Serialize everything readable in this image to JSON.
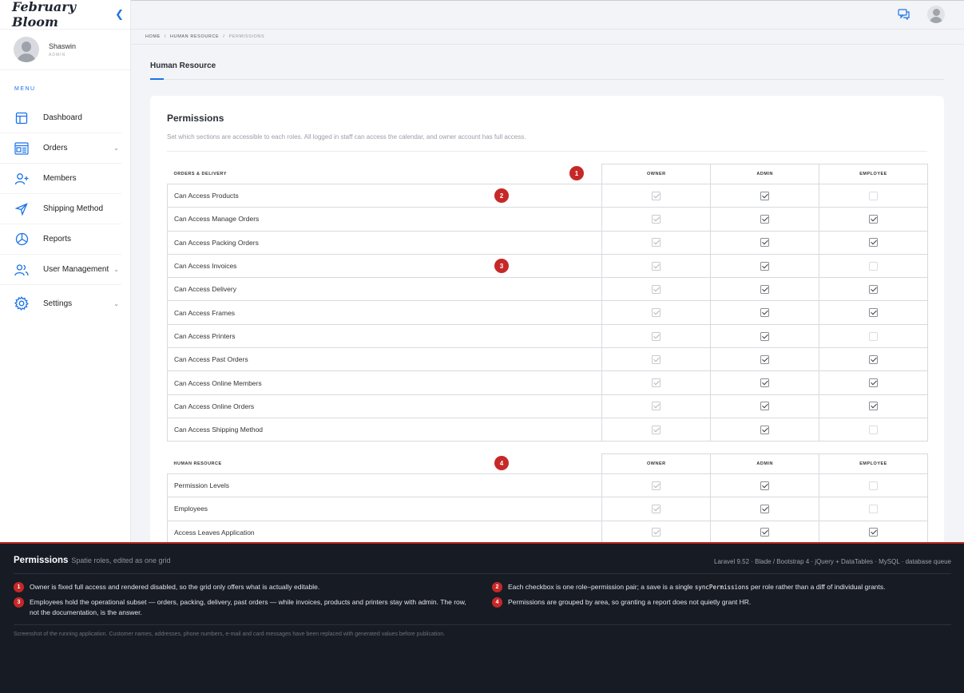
{
  "app": {
    "brand": "February Bloom"
  },
  "user": {
    "name": "Shaswin",
    "role": "ADMIN"
  },
  "sidebar": {
    "menu_label": "MENU",
    "items": [
      {
        "label": "Dashboard",
        "icon": "layout-icon",
        "chevron": false
      },
      {
        "label": "Orders",
        "icon": "orders-icon",
        "chevron": true
      },
      {
        "label": "Members",
        "icon": "user-plus-icon",
        "chevron": false
      },
      {
        "label": "Shipping Method",
        "icon": "send-icon",
        "chevron": false
      },
      {
        "label": "Reports",
        "icon": "pie-chart-icon",
        "chevron": false
      },
      {
        "label": "User Management",
        "icon": "users-icon",
        "chevron": true
      },
      {
        "label": "Settings",
        "icon": "gear-icon",
        "chevron": true
      }
    ]
  },
  "breadcrumb": {
    "home": "HOME",
    "section": "HUMAN RESOURCE",
    "current": "PERMISSIONS"
  },
  "page": {
    "title": "Human Resource"
  },
  "card": {
    "title": "Permissions",
    "subtitle": "Set which sections are accessible to each roles. All logged in staff can access the calendar, and owner account has full access."
  },
  "roles": [
    "OWNER",
    "ADMIN",
    "EMPLOYEE"
  ],
  "groups": [
    {
      "name": "ORDERS & DELIVERY",
      "rows": [
        {
          "label": "Can Access Products",
          "owner": true,
          "admin": true,
          "employee": false
        },
        {
          "label": "Can Access Manage Orders",
          "owner": true,
          "admin": true,
          "employee": true
        },
        {
          "label": "Can Access Packing Orders",
          "owner": true,
          "admin": true,
          "employee": true
        },
        {
          "label": "Can Access Invoices",
          "owner": true,
          "admin": true,
          "employee": false
        },
        {
          "label": "Can Access Delivery",
          "owner": true,
          "admin": true,
          "employee": true
        },
        {
          "label": "Can Access Frames",
          "owner": true,
          "admin": true,
          "employee": true
        },
        {
          "label": "Can Access Printers",
          "owner": true,
          "admin": true,
          "employee": false
        },
        {
          "label": "Can Access Past Orders",
          "owner": true,
          "admin": true,
          "employee": true
        },
        {
          "label": "Can Access Online Members",
          "owner": true,
          "admin": true,
          "employee": true
        },
        {
          "label": "Can Access Online Orders",
          "owner": true,
          "admin": true,
          "employee": true
        },
        {
          "label": "Can Access Shipping Method",
          "owner": true,
          "admin": true,
          "employee": false
        }
      ]
    },
    {
      "name": "HUMAN RESOURCE",
      "rows": [
        {
          "label": "Permission Levels",
          "owner": true,
          "admin": true,
          "employee": false
        },
        {
          "label": "Employees",
          "owner": true,
          "admin": true,
          "employee": false
        },
        {
          "label": "Access Leaves Application",
          "owner": true,
          "admin": true,
          "employee": true
        }
      ]
    }
  ],
  "markers": [
    "1",
    "2",
    "3",
    "4"
  ],
  "footer": {
    "title": "Permissions",
    "subtitle": "Spatie roles, edited as one grid",
    "stack": "Laravel 9.52 · Blade / Bootstrap 4 · jQuery + DataTables · MySQL · database queue",
    "notes": [
      {
        "num": "1",
        "text": "Owner is fixed full access and rendered disabled, so the grid only offers what is actually editable."
      },
      {
        "num": "2",
        "pre": "Each checkbox is one role–permission pair; a save is a single ",
        "code": "syncPermissions",
        "post": " per role rather than a diff of individual grants."
      },
      {
        "num": "3",
        "text": "Employees hold the operational subset — orders, packing, delivery, past orders — while invoices, products and printers stay with admin. The row, not the documentation, is the answer."
      },
      {
        "num": "4",
        "text": "Permissions are grouped by area, so granting a report does not quietly grant HR."
      }
    ],
    "disclaimer": "Screenshot of the running application. Customer names, addresses, phone numbers, e-mail and card messages have been replaced with generated values before publication."
  },
  "colors": {
    "accent": "#1a73e8",
    "marker": "#c62828",
    "footer_bg": "#171b24"
  }
}
